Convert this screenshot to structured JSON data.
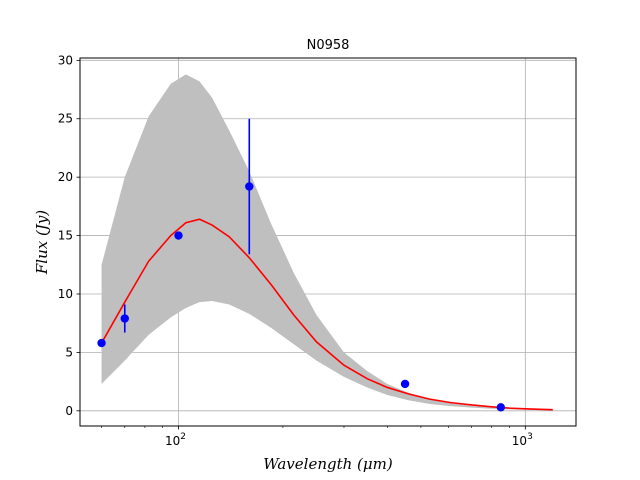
{
  "chart_data": {
    "type": "line",
    "title": "N0958",
    "xlabel": "Wavelength (μm)",
    "ylabel": "Flux (Jy)",
    "xscale": "log",
    "xlim": [
      52,
      1400
    ],
    "ylim": [
      -1.3,
      30.2
    ],
    "grid": true,
    "x_ticks": [
      {
        "value": 100,
        "base": "10",
        "exp": "2"
      },
      {
        "value": 1000,
        "base": "10",
        "exp": "3"
      }
    ],
    "y_ticks": [
      0,
      5,
      10,
      15,
      20,
      25,
      30
    ],
    "series": [
      {
        "kind": "band",
        "color": "#bfbfbf",
        "x": [
          60,
          70,
          82,
          95,
          105,
          115,
          125,
          140,
          160,
          185,
          215,
          250,
          300,
          350,
          400,
          460,
          530,
          610,
          700,
          800,
          900,
          1000,
          1100,
          1200
        ],
        "upper": [
          12.5,
          20.0,
          25.2,
          28.0,
          28.8,
          28.2,
          26.8,
          24.0,
          20.5,
          16.0,
          11.8,
          8.2,
          5.0,
          3.4,
          2.3,
          1.55,
          1.0,
          0.65,
          0.42,
          0.3,
          0.22,
          0.16,
          0.12,
          0.1
        ],
        "lower": [
          2.3,
          4.3,
          6.5,
          8.0,
          8.8,
          9.3,
          9.4,
          9.1,
          8.3,
          7.1,
          5.7,
          4.3,
          2.9,
          2.0,
          1.35,
          0.9,
          0.58,
          0.4,
          0.27,
          0.18,
          0.12,
          0.09,
          0.07,
          0.05
        ]
      },
      {
        "kind": "line",
        "color": "#ff0000",
        "x": [
          60,
          70,
          82,
          95,
          105,
          115,
          125,
          140,
          160,
          185,
          215,
          250,
          300,
          350,
          400,
          460,
          530,
          610,
          700,
          800,
          900,
          1000,
          1100,
          1200
        ],
        "y": [
          5.8,
          9.3,
          12.8,
          15.0,
          16.1,
          16.4,
          15.9,
          14.9,
          13.1,
          10.8,
          8.2,
          5.9,
          3.9,
          2.75,
          2.0,
          1.45,
          1.0,
          0.7,
          0.5,
          0.34,
          0.23,
          0.17,
          0.13,
          0.1
        ]
      },
      {
        "kind": "points",
        "color": "#0000ff",
        "x": [
          60,
          70,
          100,
          160,
          450,
          850
        ],
        "y": [
          5.8,
          7.9,
          15.0,
          19.2,
          2.3,
          0.3
        ],
        "yerr": [
          0.2,
          1.2,
          0.3,
          5.8,
          0.3,
          0.1
        ]
      }
    ]
  }
}
